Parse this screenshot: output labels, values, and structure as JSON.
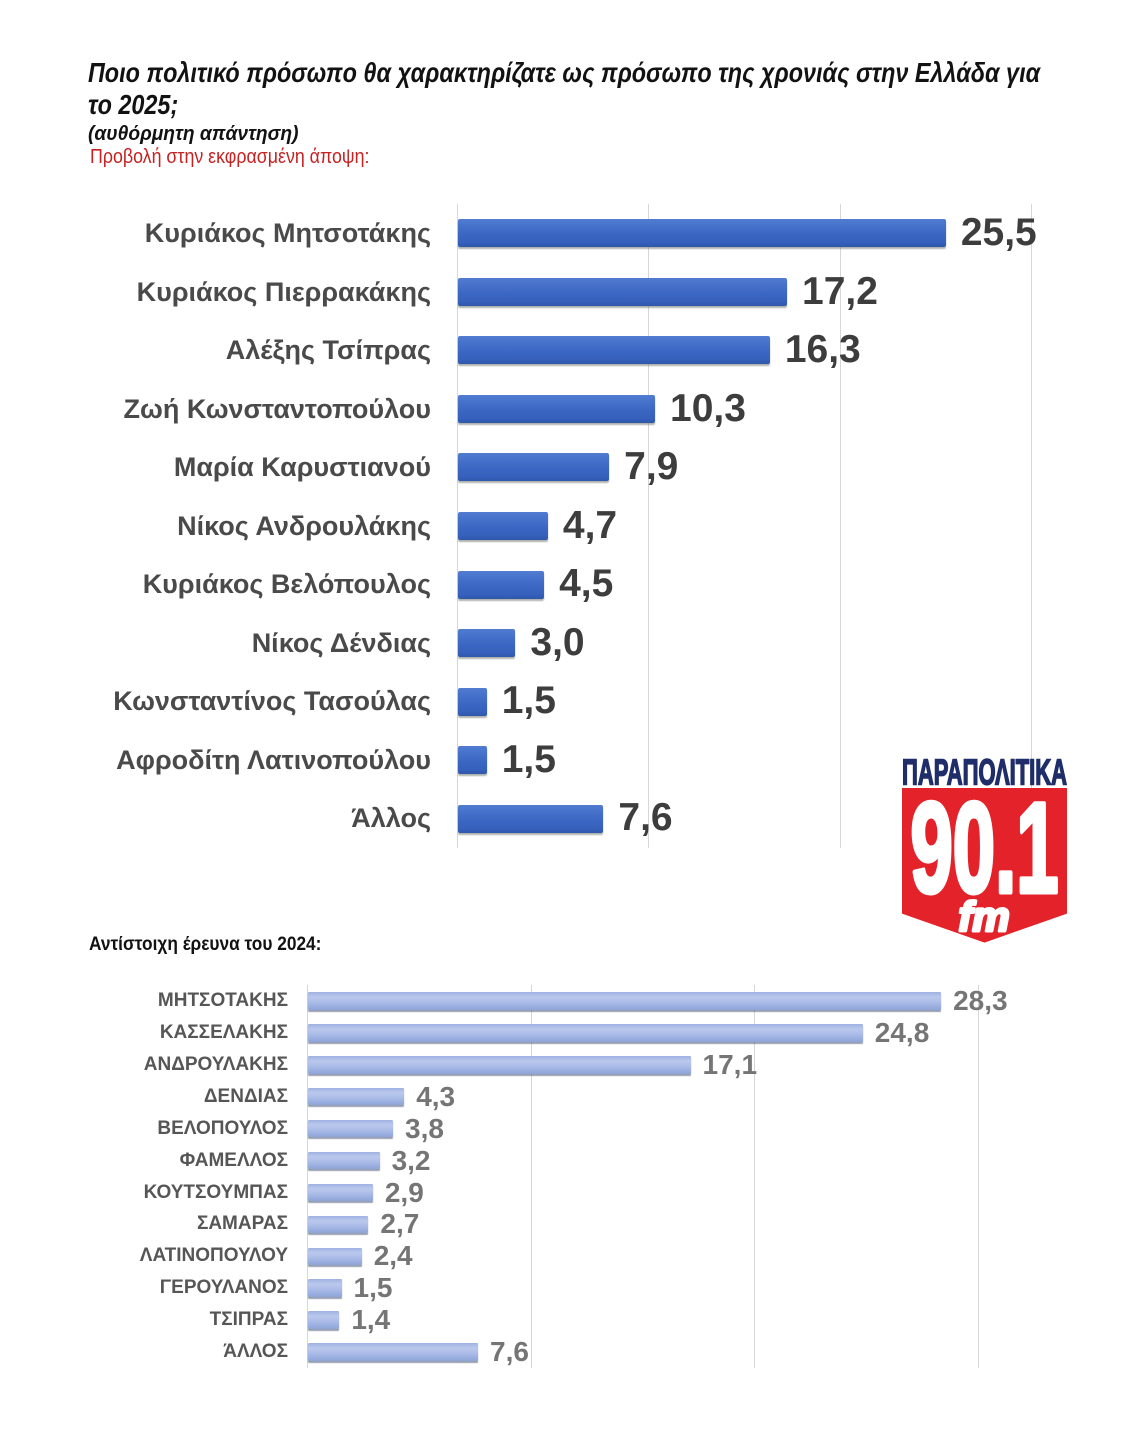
{
  "header": {
    "title_line1": "Ποιο πολιτικό πρόσωπο θα χαρακτηρίζατε ως πρόσωπο της χρονιάς στην Ελλάδα για",
    "title_line2": "το 2025;",
    "subtitle": "(αυθόρμητη απάντηση)",
    "note": "Προβολή στην εκφρασμένη άποψη:",
    "note_color": "#c52222"
  },
  "section2": {
    "heading": "Αντίστοιχη έρευνα του 2024:"
  },
  "logo": {
    "brand": "ΠΑΡΑΠΟΛΙΤΙΚΑ",
    "frequency": "90.1",
    "band": "fm",
    "navy_color": "#1f2d69",
    "red_color": "#e3222a"
  },
  "chart_data": [
    {
      "type": "bar",
      "orientation": "horizontal",
      "title": "Ποιο πολιτικό πρόσωπο θα χαρακτηρίζατε ως πρόσωπο της χρονιάς στην Ελλάδα για το 2025; (αυθόρμητη απάντηση)",
      "categories": [
        "Κυριάκος Μητσοτάκης",
        "Κυριάκος Πιερρακάκης",
        "Αλέξης Τσίπρας",
        "Ζωή Κωνσταντοπούλου",
        "Μαρία Καρυστιανού",
        "Νίκος Ανδρουλάκης",
        "Κυριάκος Βελόπουλος",
        "Νίκος Δένδιας",
        "Κωνσταντίνος Τασούλας",
        "Αφροδίτη Λατινοπούλου",
        "Άλλος"
      ],
      "values": [
        25.5,
        17.2,
        16.3,
        10.3,
        7.9,
        4.7,
        4.5,
        3.0,
        1.5,
        1.5,
        7.6
      ],
      "value_labels": [
        "25,5",
        "17,2",
        "16,3",
        "10,3",
        "7,9",
        "4,7",
        "4,5",
        "3,0",
        "1,5",
        "1,5",
        "7,6"
      ],
      "xlim": [
        0,
        30
      ],
      "gridline_values": [
        0,
        10,
        20,
        30
      ],
      "bar_color": "#3a66c3",
      "grid_on": true,
      "legend": "none"
    },
    {
      "type": "bar",
      "orientation": "horizontal",
      "title": "Αντίστοιχη έρευνα του 2024",
      "categories": [
        "ΜΗΤΣΟΤΑΚΗΣ",
        "ΚΑΣΣΕΛΑΚΗΣ",
        "ΑΝΔΡΟΥΛΑΚΗΣ",
        "ΔΕΝΔΙΑΣ",
        "ΒΕΛΟΠΟΥΛΟΣ",
        "ΦΑΜΕΛΛΟΣ",
        "ΚΟΥΤΣΟΥΜΠΑΣ",
        "ΣΑΜΑΡΑΣ",
        "ΛΑΤΙΝΟΠΟΥΛΟΥ",
        "ΓΕΡΟΥΛΑΝΟΣ",
        "ΤΣΙΠΡΑΣ",
        "ΆΛΛΟΣ"
      ],
      "values": [
        28.3,
        24.8,
        17.1,
        4.3,
        3.8,
        3.2,
        2.9,
        2.7,
        2.4,
        1.5,
        1.4,
        7.6
      ],
      "value_labels": [
        "28,3",
        "24,8",
        "17,1",
        "4,3",
        "3,8",
        "3,2",
        "2,9",
        "2,7",
        "2,4",
        "1,5",
        "1,4",
        "7,6"
      ],
      "xlim": [
        0,
        30
      ],
      "gridline_values": [
        0,
        10,
        20,
        30
      ],
      "bar_color": "#a9bce7",
      "grid_on": true,
      "legend": "none"
    }
  ]
}
